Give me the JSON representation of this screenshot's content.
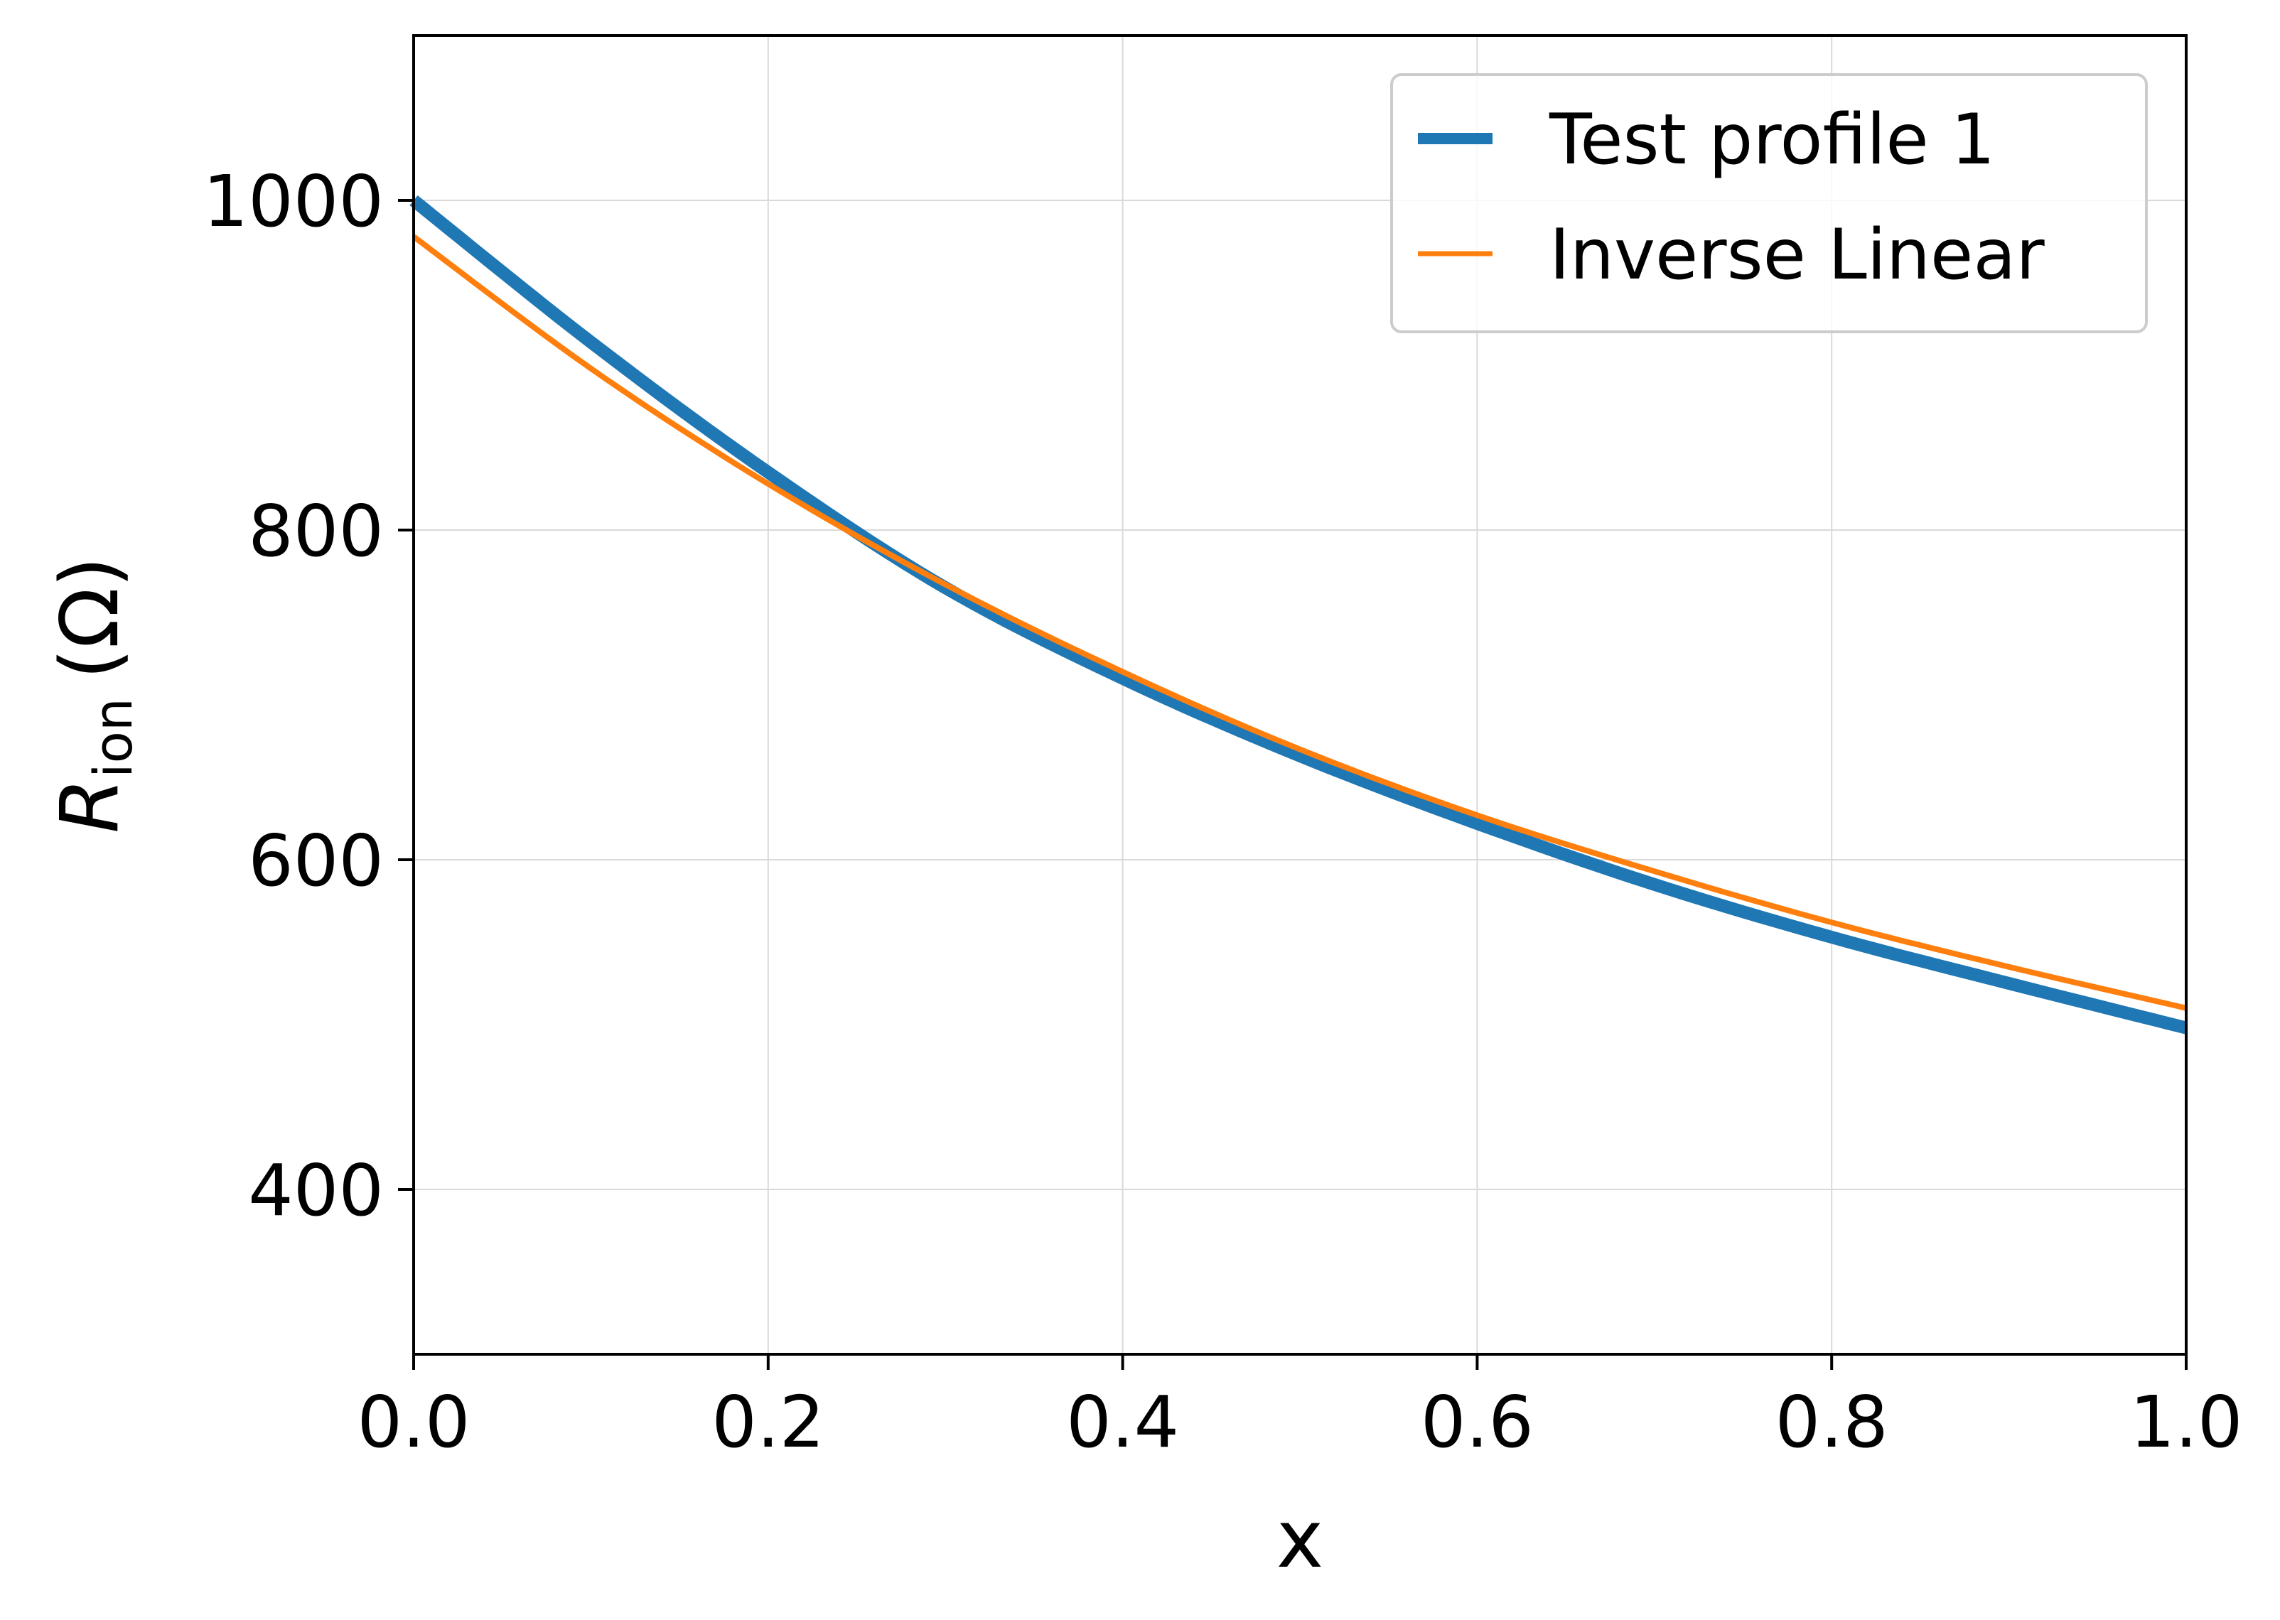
{
  "chart_data": {
    "type": "line",
    "xlabel": "x",
    "ylabel": {
      "main": "R",
      "sub": "ion",
      "unit": "(Ω)"
    },
    "xlim": [
      0.0,
      1.0
    ],
    "ylim": [
      300,
      1100
    ],
    "xticks": [
      0.0,
      0.2,
      0.4,
      0.6,
      0.8,
      1.0
    ],
    "xtick_labels": [
      "0.0",
      "0.2",
      "0.4",
      "0.6",
      "0.8",
      "1.0"
    ],
    "yticks": [
      400,
      600,
      800,
      1000
    ],
    "ytick_labels": [
      "400",
      "600",
      "800",
      "1000"
    ],
    "grid": true,
    "legend_position": "upper right",
    "series": [
      {
        "name": "Test profile 1",
        "color": "#1f77b4",
        "style": "thick",
        "x": [
          0.0,
          0.1,
          0.2,
          0.3,
          0.4,
          0.5,
          0.6,
          0.7,
          0.8,
          0.9,
          1.0
        ],
        "y": [
          1000,
          914,
          835,
          765,
          710,
          663,
          622,
          585,
          553,
          525,
          498
        ]
      },
      {
        "name": "Inverse Linear",
        "color": "#ff7f0e",
        "style": "thin",
        "x": [
          0.0,
          0.1,
          0.2,
          0.3,
          0.4,
          0.5,
          0.6,
          0.7,
          0.8,
          0.9,
          1.0
        ],
        "y": [
          978,
          898,
          828,
          767,
          714,
          667,
          627,
          593,
          562,
          535,
          510
        ]
      }
    ]
  }
}
